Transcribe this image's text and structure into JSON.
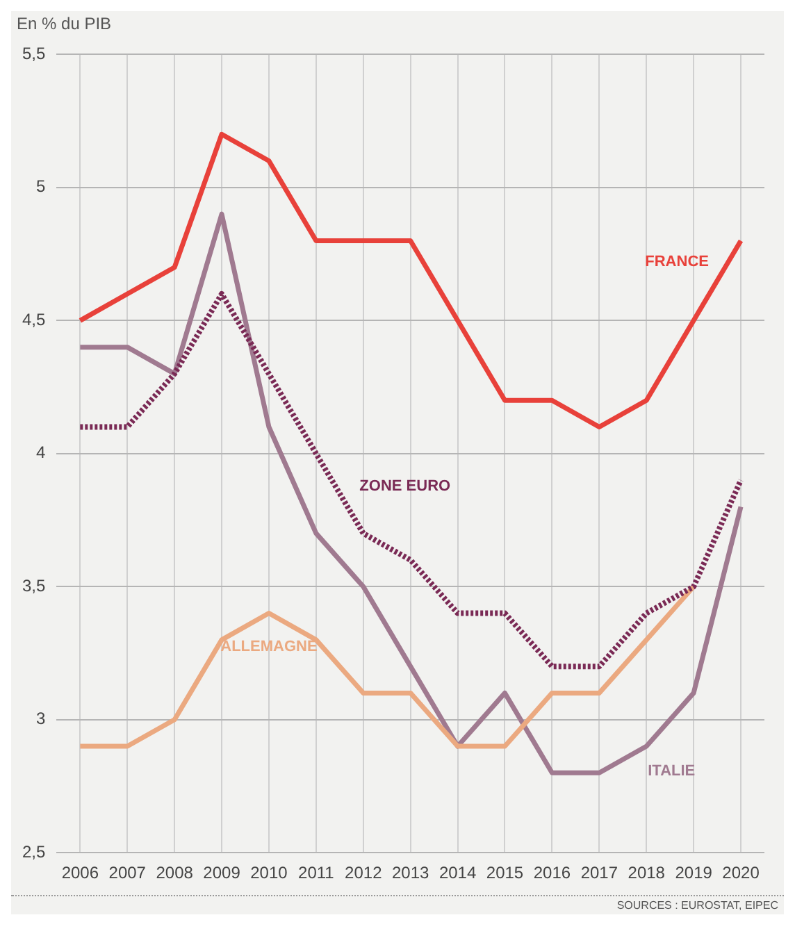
{
  "chart_data": {
    "type": "line",
    "ylabel": "En % du PIB",
    "annotations": [
      "SOURCES : EUROSTAT, EIPEC"
    ],
    "categories": [
      "2006",
      "2007",
      "2008",
      "2009",
      "2010",
      "2011",
      "2012",
      "2013",
      "2014",
      "2015",
      "2016",
      "2017",
      "2018",
      "2019",
      "2020"
    ],
    "series": [
      {
        "name": "FRANCE",
        "color": "#e8413a",
        "values": [
          4.5,
          4.6,
          4.7,
          5.2,
          5.1,
          4.8,
          4.8,
          4.8,
          4.5,
          4.2,
          4.2,
          4.1,
          4.2,
          4.5,
          4.8
        ]
      },
      {
        "name": "ZONE EURO",
        "color": "#7a2a55",
        "line_style": "dotted",
        "values": [
          4.1,
          4.1,
          4.3,
          4.6,
          4.3,
          4.0,
          3.7,
          3.6,
          3.4,
          3.4,
          3.2,
          3.2,
          3.4,
          3.5,
          3.9
        ]
      },
      {
        "name": "ALLEMAGNE",
        "color": "#eba980",
        "values": [
          2.9,
          2.9,
          3.0,
          3.3,
          3.4,
          3.3,
          3.1,
          3.1,
          2.9,
          2.9,
          3.1,
          3.1,
          3.3,
          3.5,
          null
        ]
      },
      {
        "name": "ITALIE",
        "color": "#a07a90",
        "values": [
          4.4,
          4.4,
          4.3,
          4.9,
          4.1,
          3.7,
          3.5,
          3.2,
          2.9,
          3.1,
          2.8,
          2.8,
          2.9,
          3.1,
          3.8
        ]
      }
    ],
    "ylim": [
      2.5,
      5.5
    ],
    "yticks": [
      {
        "value": 2.5,
        "label": "2,5"
      },
      {
        "value": 3,
        "label": "3"
      },
      {
        "value": 3.5,
        "label": "3,5"
      },
      {
        "value": 4,
        "label": "4"
      },
      {
        "value": 4.5,
        "label": "4,5"
      },
      {
        "value": 5,
        "label": "5"
      },
      {
        "value": 5.5,
        "label": "5,5"
      }
    ],
    "grid": true,
    "legend": false,
    "marker": "none",
    "line_style": "solid"
  }
}
